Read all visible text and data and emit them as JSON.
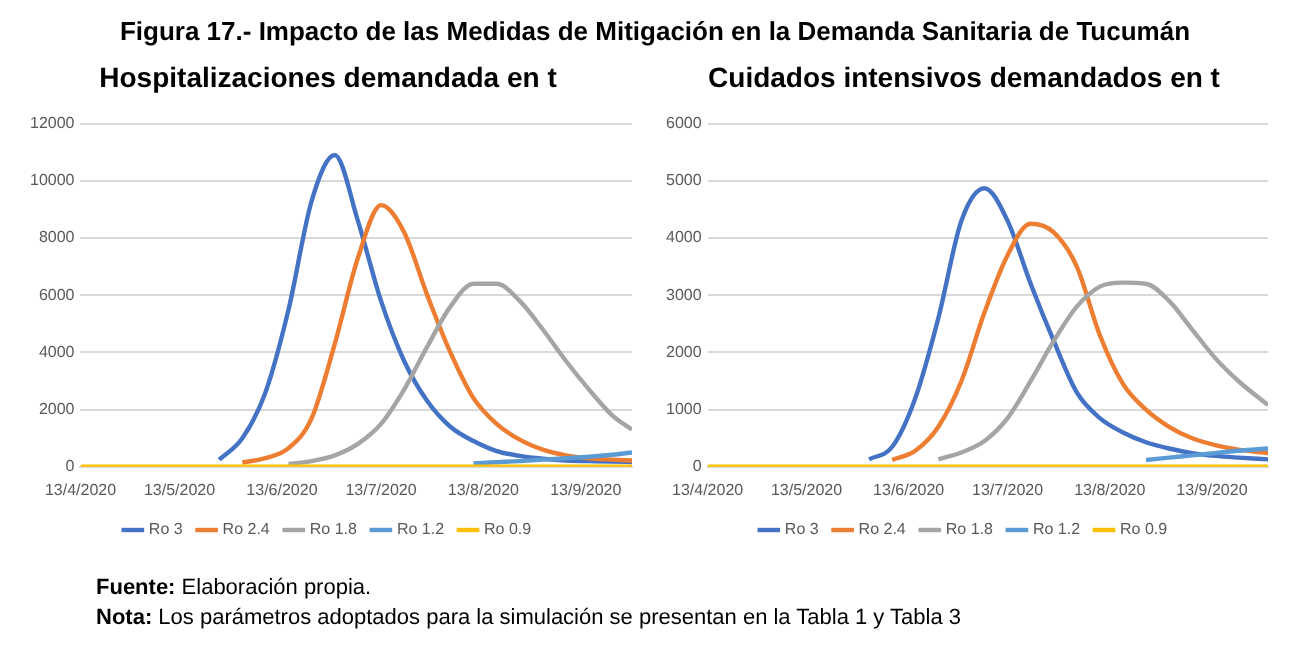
{
  "chart_data": [
    {
      "type": "line",
      "title": "Hospitalizaciones demandada en t",
      "annotations": [
        "Figura 17.- Impacto de las Medidas de Mitigación en la Demanda Sanitaria de Tucumán"
      ],
      "x": [
        "2020-04-13",
        "2020-04-20",
        "2020-04-27",
        "2020-05-04",
        "2020-05-11",
        "2020-05-18",
        "2020-05-25",
        "2020-06-01",
        "2020-06-08",
        "2020-06-15",
        "2020-06-22",
        "2020-06-29",
        "2020-07-06",
        "2020-07-13",
        "2020-07-20",
        "2020-07-27",
        "2020-08-03",
        "2020-08-10",
        "2020-08-17",
        "2020-08-24",
        "2020-08-31",
        "2020-09-07",
        "2020-09-14",
        "2020-09-21",
        "2020-09-27"
      ],
      "series": [
        {
          "name": "Ro 3",
          "color": "#4472c4",
          "values": [
            null,
            null,
            null,
            null,
            null,
            null,
            250,
            1000,
            2600,
            5500,
            9300,
            10900,
            8600,
            5800,
            3700,
            2300,
            1400,
            900,
            550,
            380,
            280,
            220,
            200,
            180,
            170
          ]
        },
        {
          "name": "Ro 2.4",
          "color": "#ed7d31",
          "values": [
            null,
            null,
            null,
            null,
            null,
            null,
            null,
            150,
            300,
            650,
            1700,
            4300,
            7300,
            9150,
            8200,
            6000,
            4000,
            2400,
            1500,
            950,
            600,
            400,
            300,
            250,
            220
          ]
        },
        {
          "name": "Ro 1.8",
          "color": "#a5a5a5",
          "values": [
            null,
            null,
            null,
            null,
            null,
            null,
            null,
            null,
            null,
            100,
            200,
            400,
            800,
            1500,
            2700,
            4200,
            5600,
            6400,
            6400,
            5800,
            4800,
            3700,
            2700,
            1800,
            1300
          ]
        },
        {
          "name": "Ro 1.2",
          "color": "#5b9bd5",
          "values": [
            null,
            null,
            null,
            null,
            null,
            null,
            null,
            null,
            null,
            null,
            null,
            null,
            null,
            null,
            null,
            null,
            null,
            120,
            160,
            200,
            250,
            300,
            350,
            420,
            500
          ]
        },
        {
          "name": "Ro 0.9",
          "color": "#ffc000",
          "values": [
            0,
            0,
            0,
            0,
            0,
            0,
            0,
            0,
            0,
            0,
            0,
            0,
            0,
            0,
            0,
            0,
            0,
            0,
            0,
            0,
            0,
            0,
            0,
            0,
            0
          ]
        }
      ],
      "xlim": [
        "2020-04-13",
        "2020-09-27"
      ],
      "xticks": [
        {
          "value": "2020-04-13",
          "label": "13/4/2020"
        },
        {
          "value": "2020-05-13",
          "label": "13/5/2020"
        },
        {
          "value": "2020-06-13",
          "label": "13/6/2020"
        },
        {
          "value": "2020-07-13",
          "label": "13/7/2020"
        },
        {
          "value": "2020-08-13",
          "label": "13/8/2020"
        },
        {
          "value": "2020-09-13",
          "label": "13/9/2020"
        }
      ],
      "ylim": [
        0,
        12000
      ],
      "yticks": [
        0,
        2000,
        4000,
        6000,
        8000,
        10000,
        12000
      ],
      "grid": "y",
      "legend": "bottom",
      "marker": "none",
      "line_style": "solid"
    },
    {
      "type": "line",
      "title": "Cuidados intensivos demandados en t",
      "annotations": [
        "Fuente: Elaboración propia.",
        "Nota: Los parámetros adoptados para la simulación se presentan en la Tabla 1 y Tabla 3"
      ],
      "x": [
        "2020-04-13",
        "2020-04-20",
        "2020-04-27",
        "2020-05-04",
        "2020-05-11",
        "2020-05-18",
        "2020-05-25",
        "2020-06-01",
        "2020-06-08",
        "2020-06-15",
        "2020-06-22",
        "2020-06-29",
        "2020-07-06",
        "2020-07-13",
        "2020-07-20",
        "2020-07-27",
        "2020-08-03",
        "2020-08-10",
        "2020-08-17",
        "2020-08-24",
        "2020-08-31",
        "2020-09-07",
        "2020-09-14",
        "2020-09-21",
        "2020-09-30"
      ],
      "series": [
        {
          "name": "Ro 3",
          "color": "#4472c4",
          "values": [
            null,
            null,
            null,
            null,
            null,
            null,
            null,
            130,
            350,
            1200,
            2600,
            4300,
            4870,
            4300,
            3200,
            2200,
            1300,
            850,
            600,
            430,
            320,
            240,
            190,
            160,
            130
          ]
        },
        {
          "name": "Ro 2.4",
          "color": "#ed7d31",
          "values": [
            null,
            null,
            null,
            null,
            null,
            null,
            null,
            null,
            120,
            280,
            700,
            1500,
            2700,
            3700,
            4250,
            4100,
            3500,
            2300,
            1450,
            1000,
            700,
            500,
            380,
            300,
            240
          ]
        },
        {
          "name": "Ro 1.8",
          "color": "#a5a5a5",
          "values": [
            null,
            null,
            null,
            null,
            null,
            null,
            null,
            null,
            null,
            null,
            130,
            250,
            450,
            850,
            1500,
            2200,
            2800,
            3150,
            3220,
            3200,
            2900,
            2400,
            1900,
            1500,
            1080
          ]
        },
        {
          "name": "Ro 1.2",
          "color": "#5b9bd5",
          "values": [
            null,
            null,
            null,
            null,
            null,
            null,
            null,
            null,
            null,
            null,
            null,
            null,
            null,
            null,
            null,
            null,
            null,
            null,
            null,
            120,
            160,
            200,
            240,
            280,
            320
          ]
        },
        {
          "name": "Ro 0.9",
          "color": "#ffc000",
          "values": [
            0,
            0,
            0,
            0,
            0,
            0,
            0,
            0,
            0,
            0,
            0,
            0,
            0,
            0,
            0,
            0,
            0,
            0,
            0,
            0,
            0,
            0,
            0,
            0,
            0
          ]
        }
      ],
      "xlim": [
        "2020-04-13",
        "2020-09-30"
      ],
      "xticks": [
        {
          "value": "2020-04-13",
          "label": "13/4/2020"
        },
        {
          "value": "2020-05-13",
          "label": "13/5/2020"
        },
        {
          "value": "2020-06-13",
          "label": "13/6/2020"
        },
        {
          "value": "2020-07-13",
          "label": "13/7/2020"
        },
        {
          "value": "2020-08-13",
          "label": "13/8/2020"
        },
        {
          "value": "2020-09-13",
          "label": "13/9/2020"
        }
      ],
      "ylim": [
        0,
        6000
      ],
      "yticks": [
        0,
        1000,
        2000,
        3000,
        4000,
        5000,
        6000
      ],
      "grid": "y",
      "legend": "bottom",
      "marker": "none",
      "line_style": "solid"
    }
  ]
}
